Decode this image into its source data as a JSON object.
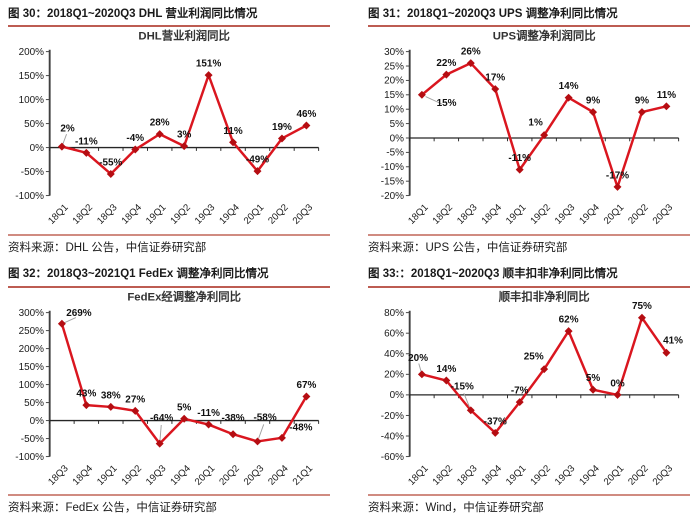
{
  "colors": {
    "line": "#da161f",
    "marker": "#b50d12",
    "axis": "#262626",
    "y_axis": "#404040",
    "tick_label": "#1a1a1a",
    "data_label": "#111111",
    "leader": "#a0a0a0",
    "caption_rule": "#bd5c52",
    "panel_rule": "#d08b81",
    "title_text": "#333333"
  },
  "panels": [
    {
      "caption": "图 30：2018Q1~2020Q3 DHL 营业利润同比情况",
      "source": "资料来源：DHL 公告，中信证券研究部"
    },
    {
      "caption": "图 31：2018Q1~2020Q3 UPS 调整净利同比情况",
      "source": "资料来源：UPS 公告，中信证券研究部"
    },
    {
      "caption": "图 32：2018Q3~2021Q1 FedEx 调整净利同比情况",
      "source": "资料来源：FedEx 公告，中信证券研究部"
    },
    {
      "caption": "图 33:：2018Q1~2020Q3 顺丰扣非净利同比情况",
      "source": "资料来源：Wind，中信证券研究部"
    }
  ],
  "chart_data": [
    {
      "type": "line",
      "title": "DHL营业利润同比",
      "categories": [
        "18Q1",
        "18Q2",
        "18Q3",
        "18Q4",
        "19Q1",
        "19Q2",
        "19Q3",
        "19Q4",
        "20Q1",
        "20Q2",
        "20Q3"
      ],
      "values": [
        2,
        -11,
        -55,
        -4,
        28,
        3,
        151,
        11,
        -49,
        19,
        46
      ],
      "unit": "%",
      "ylim": [
        -100,
        200
      ],
      "ytick_step": 50,
      "grid": false,
      "legend": false,
      "label_offsets": {
        "0": [
          6,
          -16
        ]
      },
      "leader_indices": [
        0
      ]
    },
    {
      "type": "line",
      "title": "UPS调整净利润同比",
      "categories": [
        "18Q1",
        "18Q2",
        "18Q3",
        "18Q4",
        "19Q1",
        "19Q2",
        "19Q3",
        "19Q4",
        "20Q1",
        "20Q2",
        "20Q3"
      ],
      "values": [
        15,
        22,
        26,
        17,
        -11,
        1,
        14,
        9,
        -17,
        9,
        11
      ],
      "unit": "%",
      "ylim": [
        -20,
        30
      ],
      "ytick_step": 5,
      "grid": false,
      "legend": false,
      "label_offsets": {
        "0": [
          26,
          12
        ],
        "5": [
          -9,
          -10
        ]
      },
      "leader_indices": [
        0
      ]
    },
    {
      "type": "line",
      "title": "FedEx经调整净利同比",
      "categories": [
        "18Q3",
        "18Q4",
        "19Q1",
        "19Q2",
        "19Q3",
        "19Q4",
        "20Q1",
        "20Q2",
        "20Q3",
        "20Q4",
        "21Q1"
      ],
      "values": [
        269,
        43,
        38,
        27,
        -64,
        5,
        -11,
        -38,
        -58,
        -48,
        67
      ],
      "unit": "%",
      "ylim": [
        -100,
        300
      ],
      "ytick_step": 50,
      "grid": false,
      "legend": false,
      "label_offsets": {
        "0": [
          18,
          -8
        ],
        "4": [
          2,
          -24
        ],
        "7": [
          0,
          -14
        ],
        "8": [
          8,
          -22
        ],
        "9": [
          20,
          -8
        ]
      },
      "leader_indices": [
        0,
        4,
        8
      ]
    },
    {
      "type": "line",
      "title": "顺丰扣非净利同比",
      "categories": [
        "18Q1",
        "18Q2",
        "18Q3",
        "18Q4",
        "19Q1",
        "19Q2",
        "19Q3",
        "19Q4",
        "20Q1",
        "20Q2",
        "20Q3"
      ],
      "values": [
        20,
        14,
        -15,
        -37,
        -7,
        25,
        62,
        5,
        0,
        75,
        41
      ],
      "unit": "%",
      "ylim": [
        -60,
        80
      ],
      "ytick_step": 20,
      "grid": false,
      "legend": false,
      "label_offsets": {
        "0": [
          -4,
          -14
        ],
        "2": [
          -9,
          -22
        ],
        "5": [
          -11,
          -10
        ],
        "10": [
          7,
          -10
        ]
      },
      "leader_indices": [
        0,
        2
      ]
    }
  ]
}
